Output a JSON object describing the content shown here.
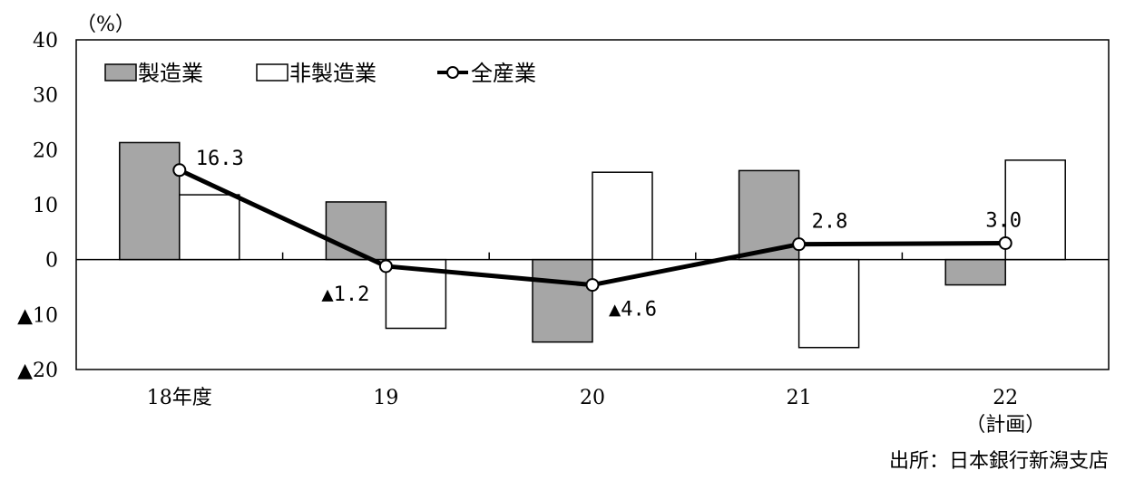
{
  "chart_data": {
    "type": "bar",
    "unit_label": "（%）",
    "categories": [
      "18年度",
      "19",
      "20",
      "21",
      "22"
    ],
    "category_notes": [
      "",
      "",
      "",
      "",
      "（計画）"
    ],
    "ylim": [
      -20,
      40
    ],
    "yticks": [
      40,
      30,
      20,
      10,
      0,
      -10,
      -20
    ],
    "ytick_labels": [
      "40",
      "30",
      "20",
      "10",
      "0",
      "▲10",
      "▲20"
    ],
    "grid": false,
    "legend_position": "top-left",
    "series": [
      {
        "name": "製造業",
        "kind": "bar",
        "color": "#a6a6a6",
        "values": [
          21.3,
          10.5,
          -15.0,
          16.2,
          -4.6
        ]
      },
      {
        "name": "非製造業",
        "kind": "bar",
        "color": "#ffffff",
        "values": [
          11.8,
          -12.5,
          15.9,
          -16.0,
          18.1
        ]
      },
      {
        "name": "全産業",
        "kind": "line",
        "color": "#000000",
        "values": [
          16.3,
          -1.2,
          -4.6,
          2.8,
          3.0
        ]
      }
    ],
    "data_labels": [
      "16.3",
      "▲1.2",
      "▲4.6",
      "2.8",
      "3.0"
    ]
  },
  "source_note": "出所：日本銀行新潟支店"
}
